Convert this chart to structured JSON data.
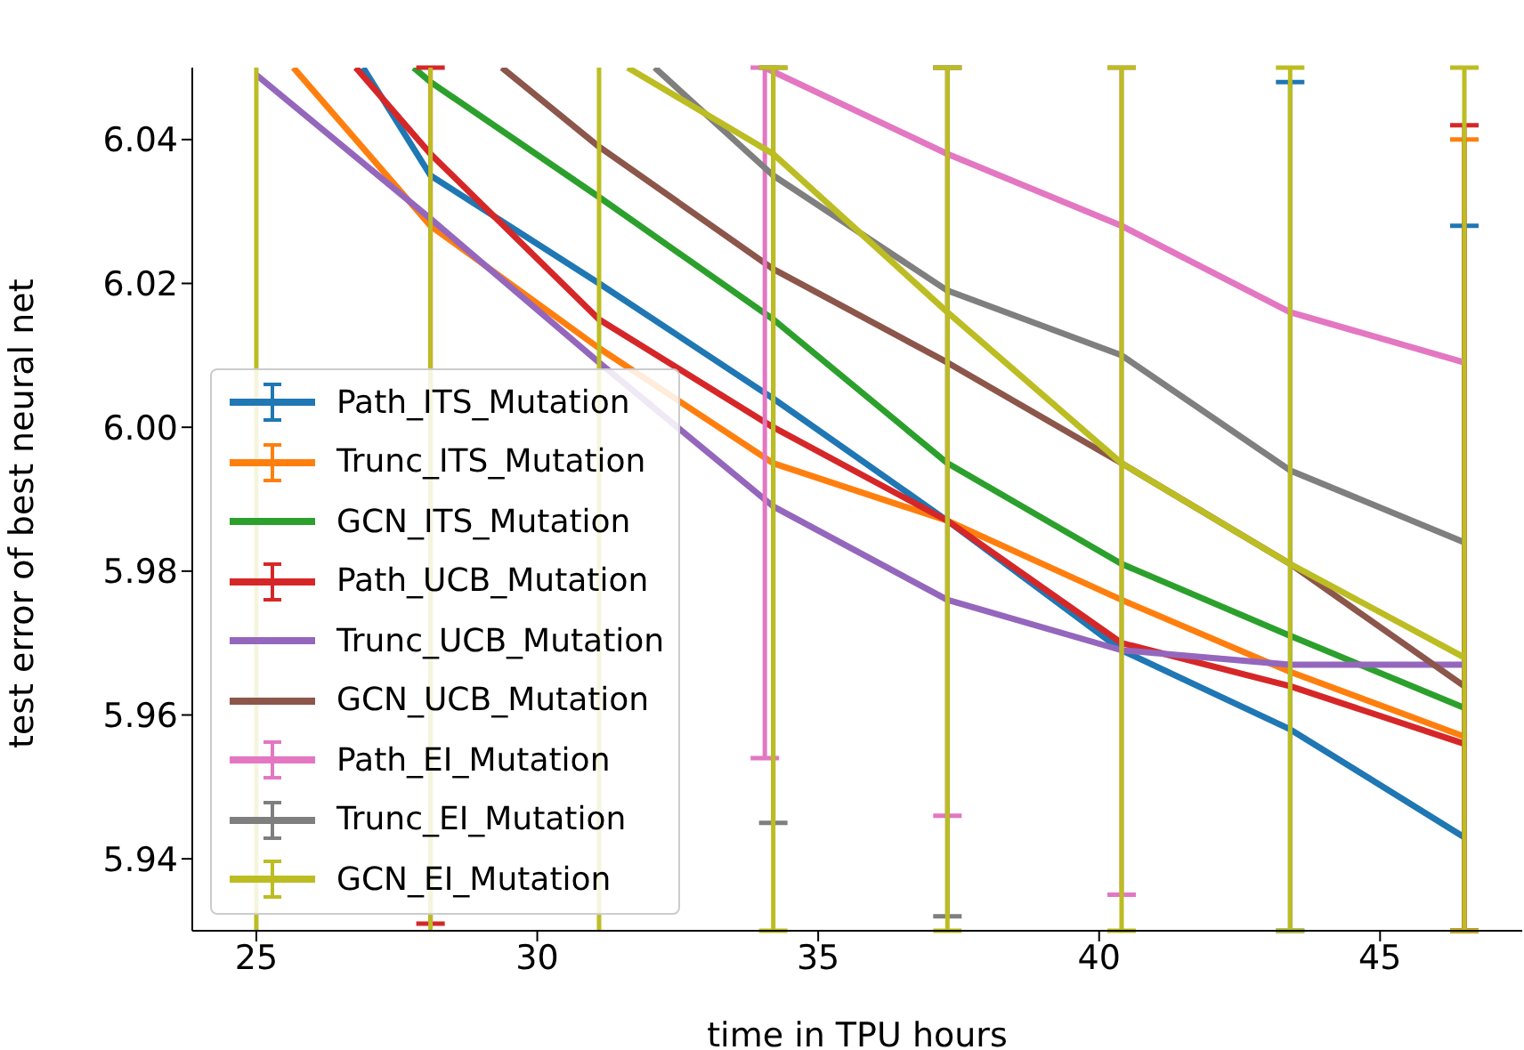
{
  "chart_data": {
    "type": "line",
    "xlabel": "time in TPU hours",
    "ylabel": "test error of best neural net",
    "xlim": [
      23.86,
      47.53
    ],
    "ylim": [
      5.93,
      6.05
    ],
    "xticks": [
      25,
      30,
      35,
      40,
      45
    ],
    "yticks": [
      5.94,
      5.96,
      5.98,
      {
        "value": 6.0,
        "label": "6.00"
      },
      6.02,
      6.04
    ],
    "grid": false,
    "legend": "bottom left",
    "line_style": "solid",
    "marker": "none",
    "series": [
      {
        "name": "Path_ITS_Mutation",
        "color": "#1f77b4",
        "x": [
          26.9,
          28.1,
          31.1,
          34.2,
          37.3,
          40.4,
          43.4,
          46.5
        ],
        "values": [
          6.05,
          6.035,
          6.02,
          6.004,
          5.987,
          5.969,
          5.958,
          5.943
        ],
        "errors": [
          null,
          null,
          null,
          null,
          null,
          null,
          [
            5.93,
            6.048
          ],
          [
            5.93,
            6.028
          ]
        ]
      },
      {
        "name": "Trunc_ITS_Mutation",
        "color": "#ff7f0e",
        "x": [
          25.66,
          28.1,
          31.1,
          34.2,
          37.3,
          40.4,
          43.4,
          46.5
        ],
        "values": [
          6.05,
          6.028,
          6.011,
          5.995,
          5.987,
          5.976,
          5.966,
          5.957
        ],
        "errors": [
          null,
          null,
          null,
          null,
          null,
          null,
          null,
          [
            5.93,
            6.04
          ]
        ]
      },
      {
        "name": "GCN_ITS_Mutation",
        "color": "#2ca02c",
        "x": [
          27.8,
          28.1,
          31.1,
          34.2,
          37.3,
          40.4,
          43.4,
          46.5
        ],
        "values": [
          6.05,
          6.048,
          6.032,
          6.015,
          5.995,
          5.981,
          5.971,
          5.961
        ]
      },
      {
        "name": "Path_UCB_Mutation",
        "color": "#d62728",
        "x": [
          26.77,
          28.1,
          31.1,
          34.2,
          37.3,
          40.4,
          43.4,
          46.5
        ],
        "values": [
          6.05,
          6.038,
          6.015,
          6.0,
          5.987,
          5.97,
          5.964,
          5.956
        ],
        "errors": [
          null,
          [
            5.931,
            6.05
          ],
          null,
          null,
          null,
          null,
          null,
          [
            5.93,
            6.042
          ]
        ]
      },
      {
        "name": "Trunc_UCB_Mutation",
        "color": "#9467bd",
        "x": [
          25.0,
          28.1,
          31.1,
          34.2,
          37.3,
          40.4,
          43.4,
          46.5
        ],
        "values": [
          6.049,
          6.029,
          6.009,
          5.989,
          5.976,
          5.969,
          5.967,
          5.967
        ]
      },
      {
        "name": "GCN_UCB_Mutation",
        "color": "#8c564b",
        "x": [
          29.37,
          31.1,
          34.2,
          37.3,
          40.4,
          43.4,
          46.5
        ],
        "values": [
          6.05,
          6.039,
          6.022,
          6.009,
          5.995,
          5.981,
          5.964
        ]
      },
      {
        "name": "Path_EI_Mutation",
        "color": "#e377c2",
        "x": [
          34.05,
          37.3,
          40.4,
          43.4,
          46.5
        ],
        "values": [
          6.05,
          6.038,
          6.028,
          6.016,
          6.009
        ],
        "errors": [
          [
            5.954,
            6.05
          ],
          [
            5.946,
            6.05
          ],
          [
            5.935,
            6.05
          ],
          null,
          null
        ]
      },
      {
        "name": "Trunc_EI_Mutation",
        "color": "#7f7f7f",
        "x": [
          32.09,
          34.2,
          37.3,
          40.4,
          43.4,
          46.5
        ],
        "values": [
          6.05,
          6.035,
          6.019,
          6.01,
          5.994,
          5.984
        ],
        "errors": [
          null,
          [
            5.945,
            6.05
          ],
          [
            5.932,
            6.05
          ],
          null,
          null,
          null
        ]
      },
      {
        "name": "GCN_EI_Mutation",
        "color": "#bcbd22",
        "x": [
          31.61,
          34.2,
          37.3,
          40.4,
          43.4,
          46.5
        ],
        "values": [
          6.05,
          6.038,
          6.016,
          5.995,
          5.981,
          5.968
        ],
        "errors": [
          null,
          [
            5.93,
            6.05
          ],
          [
            5.93,
            6.05
          ],
          [
            5.93,
            6.05
          ],
          [
            5.93,
            6.05
          ],
          [
            5.93,
            6.05
          ]
        ]
      }
    ],
    "ref_lines": [
      {
        "axis": "x",
        "value": 25.0,
        "color": "#bcbd22"
      },
      {
        "axis": "x",
        "value": 28.1,
        "color": "#bcbd22"
      },
      {
        "axis": "x",
        "value": 31.1,
        "color": "#bcbd22"
      }
    ]
  }
}
